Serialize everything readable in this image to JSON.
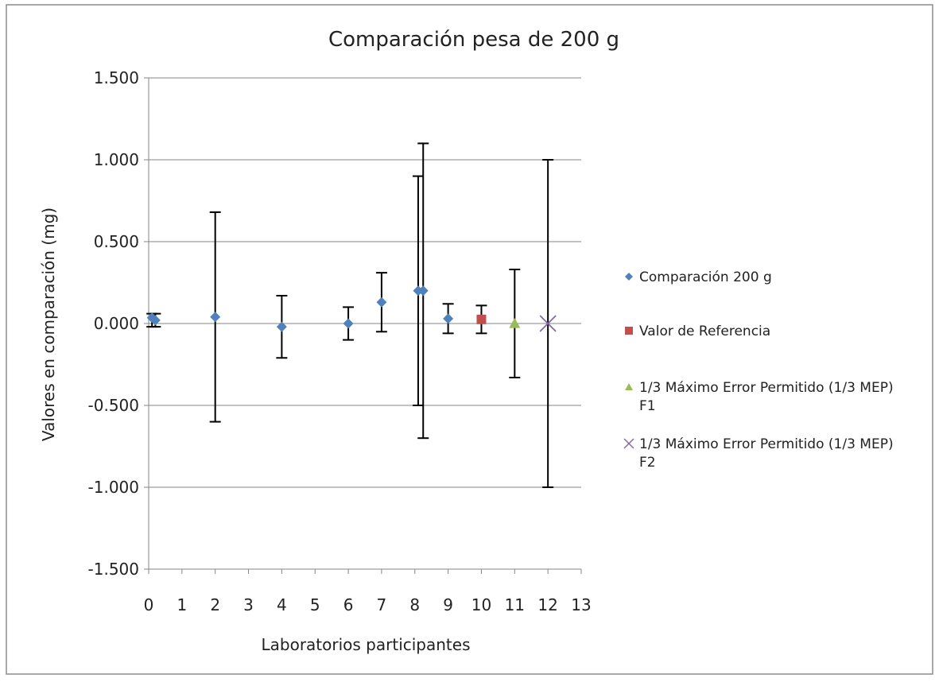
{
  "chart_data": {
    "type": "scatter",
    "title": "Comparación pesa de 200 g",
    "xlabel": "Laboratorios participantes",
    "ylabel": "Valores en comparación (mg)",
    "xlim": [
      0,
      13
    ],
    "ylim": [
      -1.5,
      1.5
    ],
    "x_ticks": [
      0,
      1,
      2,
      3,
      4,
      5,
      6,
      7,
      8,
      9,
      10,
      11,
      12,
      13
    ],
    "x_tick_labels": [
      "0",
      "1",
      "2",
      "3",
      "4",
      "5",
      "6",
      "7",
      "8",
      "9",
      "10",
      "11",
      "12",
      "13"
    ],
    "y_ticks": [
      1.5,
      1.0,
      0.5,
      0.0,
      -0.5,
      -1.0,
      -1.5
    ],
    "y_tick_labels": [
      "1.500",
      "1.000",
      "0.500",
      "0.000",
      "-0.500",
      "-1.000",
      "-1.500"
    ],
    "grid": "horizontal",
    "legend_position": "right",
    "series": [
      {
        "name": "Comparación 200 g",
        "marker": "diamond",
        "color": "#4f81bd",
        "points": [
          {
            "x": 0.1,
            "y": 0.035,
            "err_low": -0.02,
            "err_high": 0.06
          },
          {
            "x": 0.2,
            "y": 0.02,
            "err_low": -0.02,
            "err_high": 0.06
          },
          {
            "x": 2,
            "y": 0.04,
            "err_low": -0.6,
            "err_high": 0.68
          },
          {
            "x": 4,
            "y": -0.02,
            "err_low": -0.21,
            "err_high": 0.17
          },
          {
            "x": 6,
            "y": 0.0,
            "err_low": -0.1,
            "err_high": 0.1
          },
          {
            "x": 7,
            "y": 0.13,
            "err_low": -0.05,
            "err_high": 0.31
          },
          {
            "x": 8.1,
            "y": 0.2,
            "err_low": -0.5,
            "err_high": 0.9
          },
          {
            "x": 8.25,
            "y": 0.2,
            "err_low": -0.7,
            "err_high": 1.1
          },
          {
            "x": 9,
            "y": 0.03,
            "err_low": -0.06,
            "err_high": 0.12
          }
        ]
      },
      {
        "name": "Valor de Referencia",
        "marker": "square",
        "color": "#c0504d",
        "points": [
          {
            "x": 10,
            "y": 0.025,
            "err_low": -0.06,
            "err_high": 0.11
          }
        ]
      },
      {
        "name": "1/3 Máximo Error Permitido (1/3 MEP) F1",
        "legend_lines": [
          "1/3 Máximo Error Permitido (1/3 MEP)",
          "F1"
        ],
        "marker": "triangle",
        "color": "#9bbb59",
        "points": [
          {
            "x": 11,
            "y": 0.0,
            "err_low": -0.33,
            "err_high": 0.33
          }
        ]
      },
      {
        "name": "1/3 Máximo Error Permitido (1/3 MEP) F2",
        "legend_lines": [
          "1/3 Máximo Error Permitido (1/3 MEP)",
          "F2"
        ],
        "marker": "x",
        "color": "#8064a2",
        "points": [
          {
            "x": 12,
            "y": 0.0,
            "err_low": -1.0,
            "err_high": 1.0
          }
        ]
      }
    ]
  }
}
